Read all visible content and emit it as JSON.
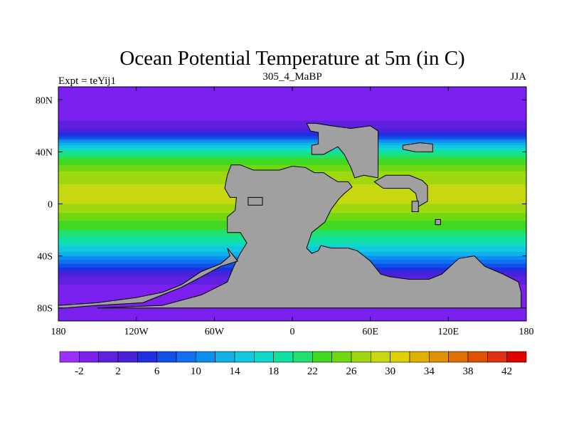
{
  "chart_data": {
    "type": "heatmap",
    "title": "Ocean Potential Temperature at 5m (in C)",
    "left_label": "Expt = teYij1",
    "center_label": "305_4_MaBP",
    "right_label": "JJA",
    "x_ticks": [
      "180",
      "120W",
      "60W",
      "0",
      "60E",
      "120E",
      "180"
    ],
    "x_tick_values": [
      -180,
      -120,
      -60,
      0,
      60,
      120,
      180
    ],
    "y_ticks": [
      "80N",
      "40N",
      "0",
      "40S",
      "80S"
    ],
    "y_tick_values": [
      80,
      40,
      0,
      -40,
      -80
    ],
    "xlim": [
      -180,
      180
    ],
    "ylim": [
      -90,
      90
    ],
    "colorbar_levels": [
      -4,
      -2,
      0,
      2,
      4,
      6,
      8,
      10,
      12,
      14,
      16,
      18,
      20,
      22,
      24,
      26,
      28,
      30,
      32,
      34,
      36,
      38,
      40,
      42,
      44
    ],
    "colorbar_labels": [
      "-2",
      "2",
      "6",
      "10",
      "14",
      "18",
      "22",
      "26",
      "30",
      "34",
      "38",
      "42"
    ],
    "colorbar_label_values": [
      -2,
      2,
      6,
      10,
      14,
      18,
      22,
      26,
      30,
      34,
      38,
      42
    ],
    "colorbar_colors": [
      "#9b30ff",
      "#7b20ee",
      "#6020e0",
      "#4a20d8",
      "#2030e0",
      "#1050e8",
      "#1070f0",
      "#0a90f0",
      "#10b0e8",
      "#10c8e0",
      "#10d8c8",
      "#10e0a0",
      "#20e070",
      "#40d820",
      "#70d810",
      "#a0d810",
      "#c8d810",
      "#e0d000",
      "#e0b000",
      "#e09000",
      "#e07000",
      "#e05000",
      "#e03010",
      "#e00000"
    ],
    "land_color": "#a0a0a0",
    "temperature_profile_by_latitude": [
      {
        "lat": 90,
        "temp": -2
      },
      {
        "lat": 70,
        "temp": -1.5
      },
      {
        "lat": 60,
        "temp": 1
      },
      {
        "lat": 52,
        "temp": 6
      },
      {
        "lat": 45,
        "temp": 14
      },
      {
        "lat": 38,
        "temp": 21
      },
      {
        "lat": 25,
        "temp": 26
      },
      {
        "lat": 10,
        "temp": 29
      },
      {
        "lat": 0,
        "temp": 28
      },
      {
        "lat": -10,
        "temp": 25
      },
      {
        "lat": -20,
        "temp": 22
      },
      {
        "lat": -30,
        "temp": 18
      },
      {
        "lat": -40,
        "temp": 12
      },
      {
        "lat": -50,
        "temp": 5
      },
      {
        "lat": -58,
        "temp": 1
      },
      {
        "lat": -65,
        "temp": -1
      },
      {
        "lat": -90,
        "temp": -2
      }
    ],
    "land_polygons": [
      {
        "name": "supercontinent",
        "coords": [
          [
            -47,
            30
          ],
          [
            -40,
            30
          ],
          [
            -30,
            26
          ],
          [
            -10,
            26
          ],
          [
            0,
            29
          ],
          [
            10,
            28
          ],
          [
            17,
            24
          ],
          [
            24,
            24
          ],
          [
            30,
            20
          ],
          [
            35,
            17
          ],
          [
            43,
            17
          ],
          [
            46,
            13
          ],
          [
            40,
            8
          ],
          [
            36,
            4
          ],
          [
            30,
            -4
          ],
          [
            25,
            -14
          ],
          [
            15,
            -22
          ],
          [
            11,
            -34
          ],
          [
            15,
            -38
          ],
          [
            20,
            -36
          ],
          [
            22,
            -32
          ],
          [
            30,
            -34
          ],
          [
            43,
            -34
          ],
          [
            50,
            -36
          ],
          [
            60,
            -44
          ],
          [
            68,
            -54
          ],
          [
            75,
            -56
          ],
          [
            90,
            -58
          ],
          [
            105,
            -58
          ],
          [
            115,
            -54
          ],
          [
            128,
            -42
          ],
          [
            140,
            -40
          ],
          [
            148,
            -48
          ],
          [
            162,
            -54
          ],
          [
            174,
            -60
          ],
          [
            176,
            -68
          ],
          [
            176,
            -80
          ],
          [
            -150,
            -80
          ],
          [
            -100,
            -78
          ],
          [
            -70,
            -70
          ],
          [
            -50,
            -60
          ],
          [
            -45,
            -48
          ],
          [
            -40,
            -38
          ],
          [
            -35,
            -30
          ],
          [
            -40,
            -22
          ],
          [
            -50,
            -22
          ],
          [
            -50,
            -10
          ],
          [
            -44,
            -5
          ],
          [
            -43,
            5
          ],
          [
            -48,
            5
          ],
          [
            -52,
            12
          ],
          [
            -50,
            22
          ]
        ]
      },
      {
        "name": "northern-landmass",
        "coords": [
          [
            11,
            62
          ],
          [
            18,
            62
          ],
          [
            30,
            60
          ],
          [
            45,
            58
          ],
          [
            60,
            60
          ],
          [
            66,
            56
          ],
          [
            66,
            20
          ],
          [
            55,
            22
          ],
          [
            48,
            20
          ],
          [
            45,
            28
          ],
          [
            40,
            38
          ],
          [
            35,
            44
          ],
          [
            24,
            38
          ],
          [
            15,
            38
          ],
          [
            15,
            45
          ],
          [
            20,
            46
          ],
          [
            20,
            55
          ],
          [
            14,
            56
          ]
        ]
      },
      {
        "name": "eastern-island",
        "coords": [
          [
            72,
            22
          ],
          [
            90,
            22
          ],
          [
            100,
            18
          ],
          [
            104,
            14
          ],
          [
            104,
            2
          ],
          [
            97,
            -2
          ],
          [
            95,
            8
          ],
          [
            90,
            12
          ],
          [
            70,
            12
          ],
          [
            63,
            17
          ]
        ]
      },
      {
        "name": "inner-lake",
        "coords": [
          [
            -34,
            -1
          ],
          [
            -23,
            -1
          ],
          [
            -23,
            5
          ],
          [
            -34,
            5
          ]
        ]
      },
      {
        "name": "southern-arc",
        "coords": [
          [
            -50,
            -34
          ],
          [
            -42,
            -44
          ],
          [
            -55,
            -48
          ],
          [
            -70,
            -56
          ],
          [
            -85,
            -64
          ],
          [
            -100,
            -70
          ],
          [
            -115,
            -76
          ],
          [
            -150,
            -78
          ],
          [
            -175,
            -80
          ],
          [
            -180,
            -80
          ],
          [
            -180,
            -78
          ],
          [
            -150,
            -76
          ],
          [
            -120,
            -72
          ],
          [
            -100,
            -68
          ],
          [
            -85,
            -62
          ],
          [
            -70,
            -52
          ],
          [
            -55,
            -46
          ],
          [
            -48,
            -40
          ]
        ]
      },
      {
        "name": "small-island-a",
        "coords": [
          [
            85,
            45
          ],
          [
            98,
            47
          ],
          [
            108,
            46
          ],
          [
            108,
            40
          ],
          [
            95,
            40
          ],
          [
            85,
            42
          ]
        ]
      },
      {
        "name": "small-island-b",
        "coords": [
          [
            92,
            2
          ],
          [
            97,
            2
          ],
          [
            97,
            -6
          ],
          [
            92,
            -6
          ]
        ]
      },
      {
        "name": "small-island-c",
        "coords": [
          [
            110,
            -12
          ],
          [
            114,
            -12
          ],
          [
            114,
            -16
          ],
          [
            110,
            -16
          ]
        ]
      }
    ]
  }
}
